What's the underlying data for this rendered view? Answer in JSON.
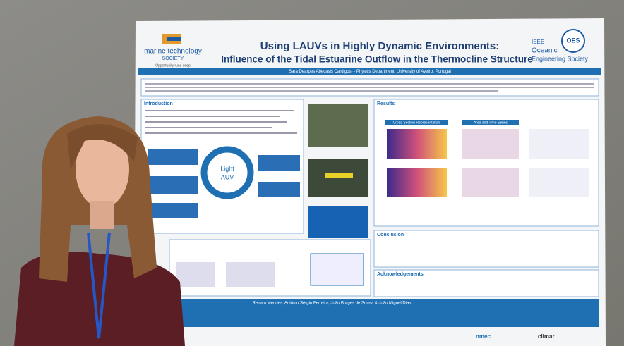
{
  "poster": {
    "title_line1": "Using LAUVs in Highly Dynamic Environments:",
    "title_line2": "Influence of the Tidal Estuarine Outflow in the Thermocline Structure",
    "left_logo": {
      "name": "marine technology",
      "sub": "SOCIETY",
      "tagline": "Opportunity runs deep"
    },
    "right_logo": {
      "badge": "OES",
      "line1": "IEEE",
      "line2": "Oceanic",
      "line3": "Engineering Society"
    },
    "presenter": "Sara Dearpes Abecasis Cardigos¹ - Physics Department, University of Aveiro, Portugal",
    "sections": {
      "introduction": "Introduction",
      "results": "Results",
      "conclusion": "Conclusion",
      "acknowledgements": "Acknowledgements"
    },
    "center_label": [
      "Light",
      "AUV"
    ],
    "results_panels": [
      "Cross-Section Representation",
      "Area and Time Series"
    ],
    "authors": "Renato Mendes, António Sérgio Ferreira, João Borges de Sousa & João Miguel Dias",
    "footer_logos": [
      "nmec",
      "climar"
    ]
  }
}
